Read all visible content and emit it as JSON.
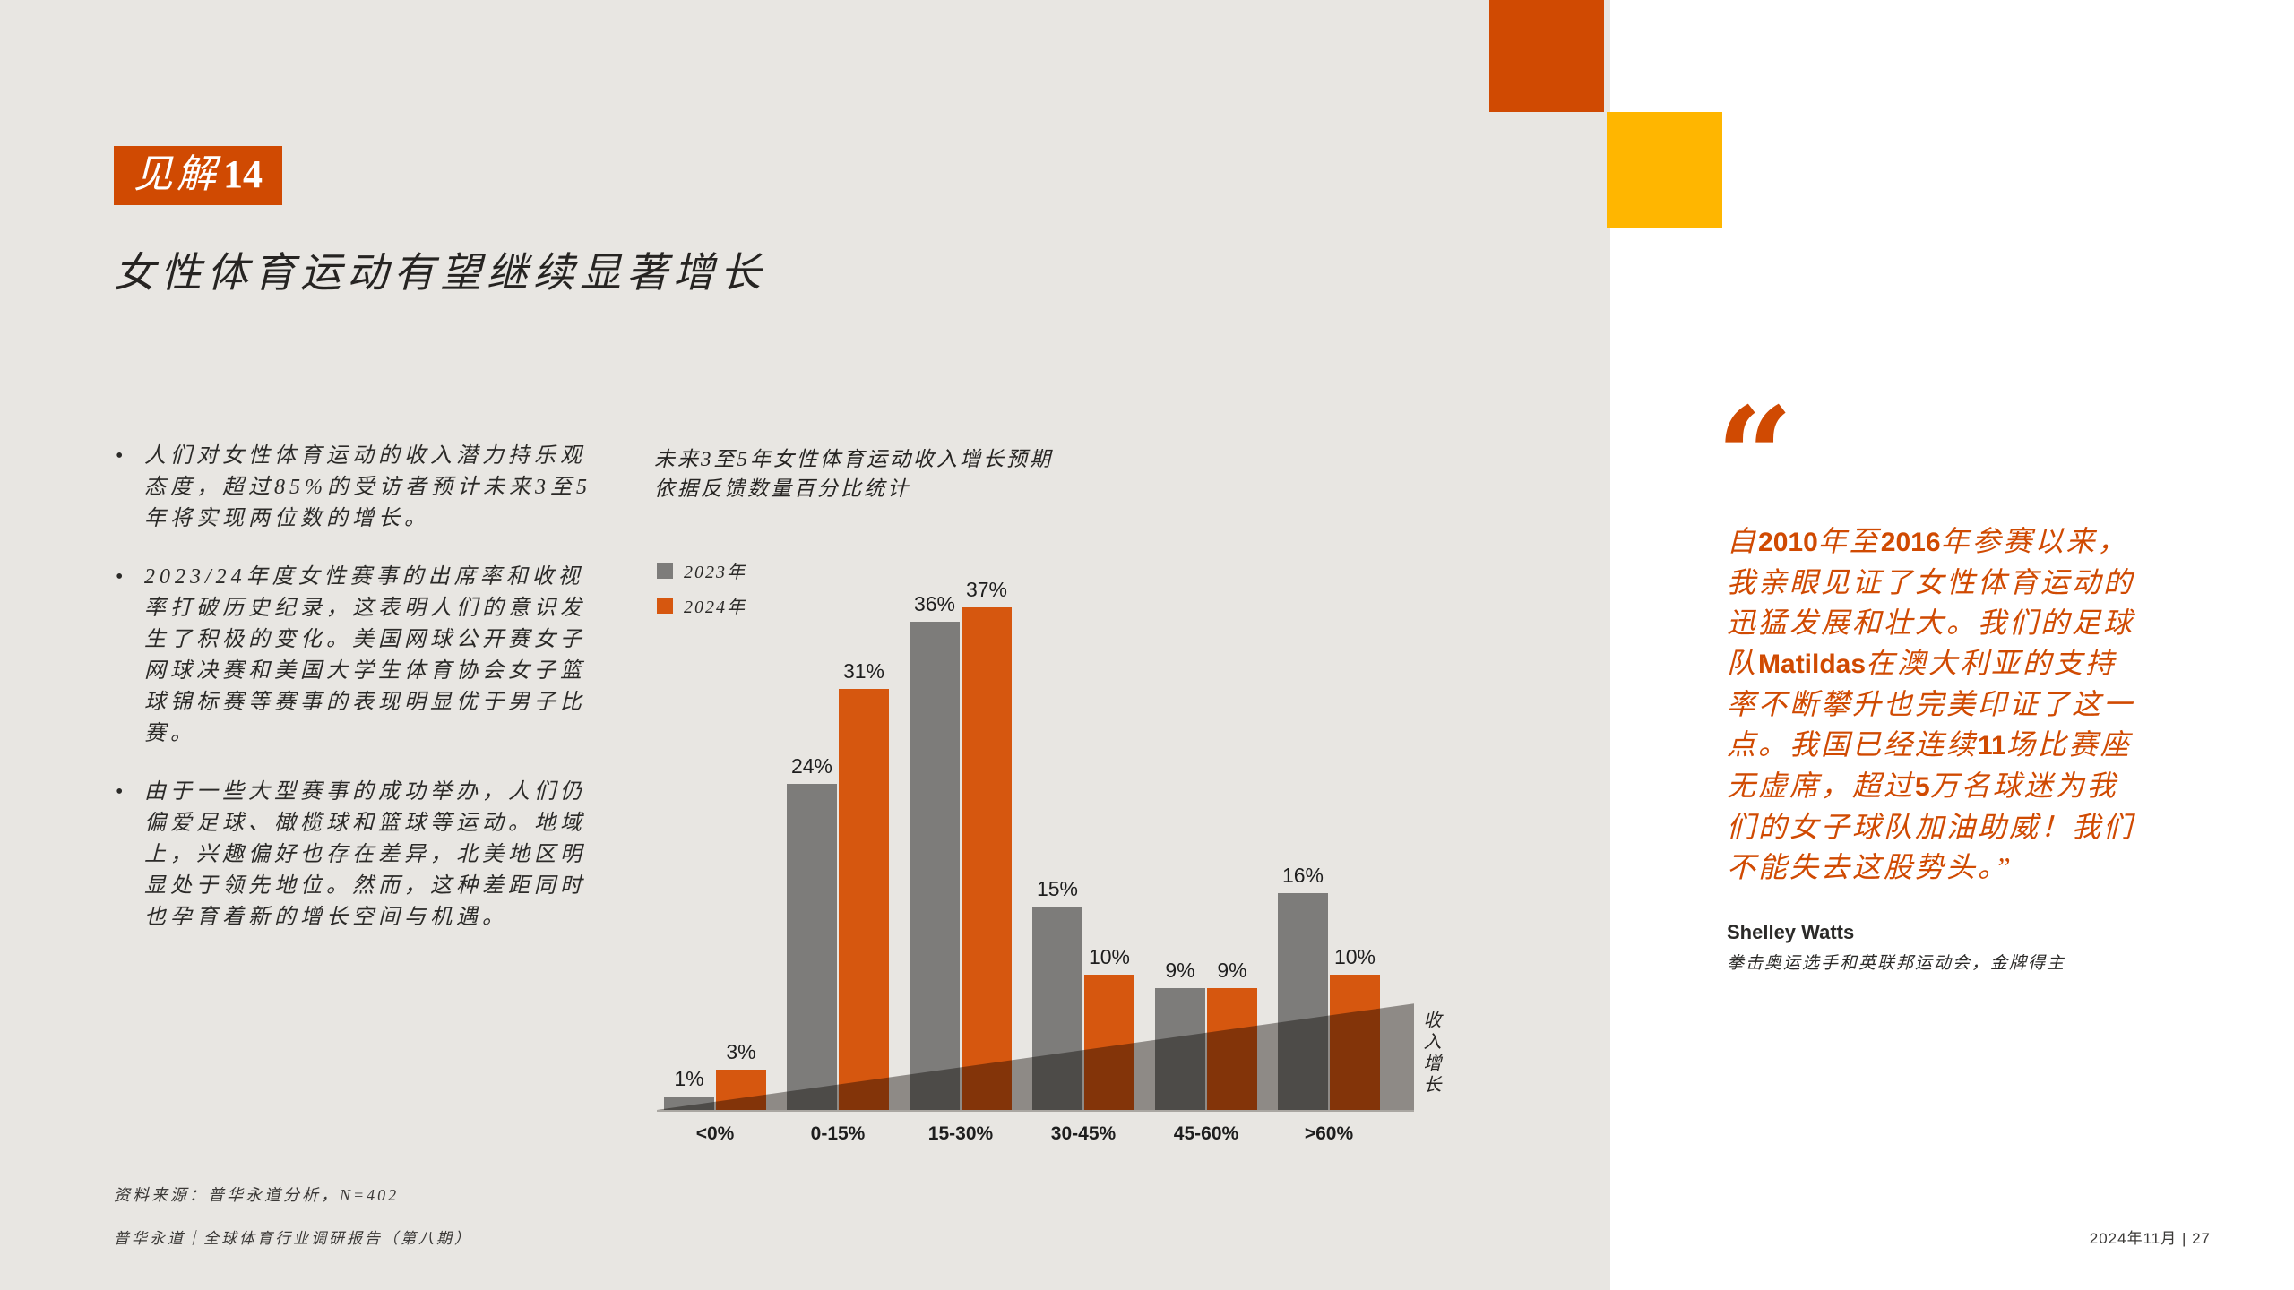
{
  "page": {
    "bg_gray": "#e8e6e2",
    "accent_orange": "#d04a02",
    "accent_yellow": "#ffb600"
  },
  "badge": {
    "prefix": "见解",
    "number": "14"
  },
  "title": "女性体育运动有望继续显著增长",
  "bullets": [
    "人们对女性体育运动的收入潜力持乐观态度，超过85%的受访者预计未来3至5年将实现两位数的增长。",
    "2023/24年度女性赛事的出席率和收视率打破历史纪录，这表明人们的意识发生了积极的变化。美国网球公开赛女子网球决赛和美国大学生体育协会女子篮球锦标赛等赛事的表现明显优于男子比赛。",
    "由于一些大型赛事的成功举办，人们仍偏爱足球、橄榄球和篮球等运动。地域上，兴趣偏好也存在差异，北美地区明显处于领先地位。然而，这种差距同时也孕育着新的增长空间与机遇。"
  ],
  "chart": {
    "title_line1": "未来3至5年女性体育运动收入增长预期",
    "title_line2": "依据反馈数量百分比统计",
    "vertical_label": "收入增长"
  },
  "chart_data": {
    "type": "bar",
    "categories": [
      "<0%",
      "0-15%",
      "15-30%",
      "30-45%",
      "45-60%",
      ">60%"
    ],
    "series": [
      {
        "name": "2023年",
        "color": "#7d7c7a",
        "values": [
          1,
          24,
          36,
          15,
          9,
          16
        ]
      },
      {
        "name": "2024年",
        "color": "#d6570f",
        "values": [
          3,
          31,
          37,
          10,
          9,
          10
        ]
      }
    ],
    "value_suffix": "%",
    "ylim": [
      0,
      40
    ],
    "title": "未来3至5年女性体育运动收入增长预期 依据反馈数量百分比统计",
    "xlabel": "",
    "ylabel": "收入增长",
    "legend_position": "top-left",
    "grid": false
  },
  "source": "资料来源：普华永道分析，N=402",
  "footer_left": "普华永道｜全球体育行业调研报告（第八期）",
  "footer_right": "2024年11月 | 27",
  "quote": {
    "mark": "“",
    "segments": [
      {
        "style": "cn",
        "text": "自"
      },
      {
        "style": "latin",
        "text": "2010"
      },
      {
        "style": "cn",
        "text": "年至"
      },
      {
        "style": "latin",
        "text": "2016"
      },
      {
        "style": "cn",
        "text": "年参赛以来，我亲眼见证了女性体育运动的迅猛发展和壮大。我们的足球队"
      },
      {
        "style": "latin",
        "text": "Matildas"
      },
      {
        "style": "cn",
        "text": "在澳大利亚的支持率不断攀升也完美印证了这一点。我国已经连续"
      },
      {
        "style": "latin",
        "text": "11"
      },
      {
        "style": "cn",
        "text": "场比赛座无虚席，超过"
      },
      {
        "style": "latin",
        "text": "5"
      },
      {
        "style": "cn",
        "text": "万名球迷为我们的女子球队加油助威！我们不能失去这股势头。”"
      }
    ],
    "author": "Shelley Watts",
    "author_desc": "拳击奥运选手和英联邦运动会，金牌得主"
  }
}
